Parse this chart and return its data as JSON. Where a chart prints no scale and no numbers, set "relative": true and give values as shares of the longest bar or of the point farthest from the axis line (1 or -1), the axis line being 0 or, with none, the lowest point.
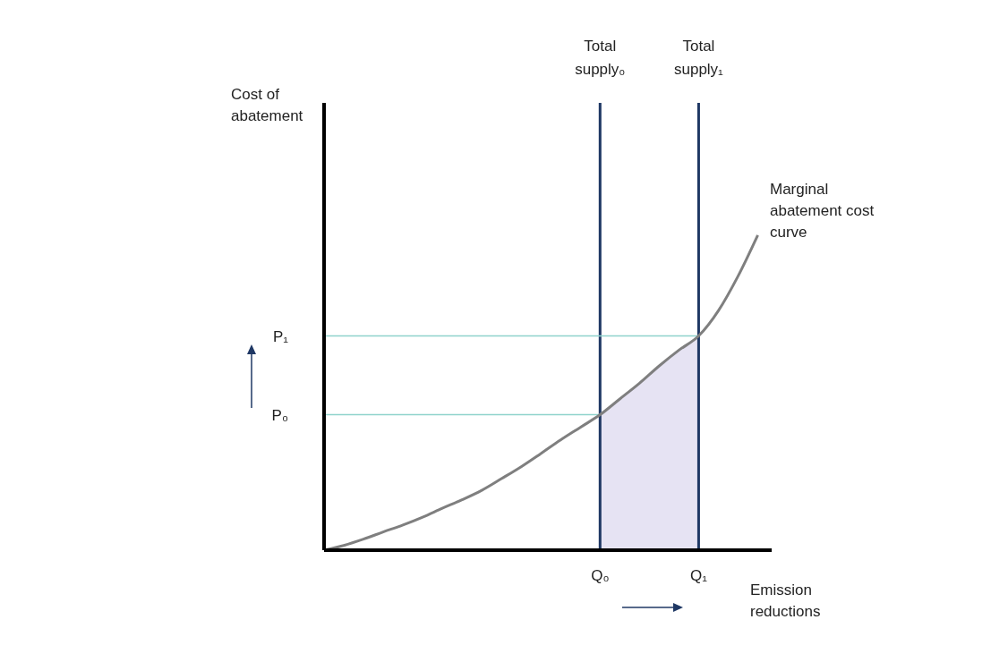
{
  "chart_data": {
    "type": "line",
    "relative": true,
    "xlabel": "Emission reductions",
    "annotations": [
      "Cost of abatement"
    ],
    "categories": [
      null,
      null,
      null,
      null,
      null,
      null,
      null,
      null,
      null,
      null,
      null,
      null,
      null,
      null,
      "Q₀",
      null,
      null,
      null,
      null,
      "Q₁",
      null,
      null,
      null
    ],
    "series": [
      {
        "name": "Marginal abatement cost curve",
        "color": "#7f7f7f",
        "values": [
          0,
          0.015,
          0.035,
          0.058,
          0.08,
          0.105,
          0.133,
          0.16,
          0.19,
          0.227,
          0.265,
          0.307,
          0.35,
          0.39,
          0.43,
          0.48,
          0.53,
          0.585,
          0.635,
          0.68,
          0.76,
          0.87,
          1
        ]
      },
      {
        "type": "area",
        "color": "#e6e3f3",
        "values": [
          null,
          null,
          null,
          null,
          null,
          null,
          null,
          null,
          null,
          null,
          null,
          null,
          null,
          null,
          0.43,
          0.48,
          0.53,
          0.585,
          0.635,
          0.68,
          null,
          null,
          null
        ]
      }
    ],
    "ref_lines": [
      {
        "axis": "x",
        "value": "Q₀",
        "label": "Total supply₀",
        "color": "#1f3864"
      },
      {
        "axis": "x",
        "value": "Q₁",
        "label": "Total supply₁",
        "color": "#1f3864"
      },
      {
        "axis": "y",
        "value": 0.43,
        "label": "P₀",
        "color": "#8fd3cc"
      },
      {
        "axis": "y",
        "value": 0.68,
        "label": "P₁",
        "color": "#8fd3cc"
      }
    ],
    "legend": false,
    "grid": false,
    "marker": "none"
  }
}
